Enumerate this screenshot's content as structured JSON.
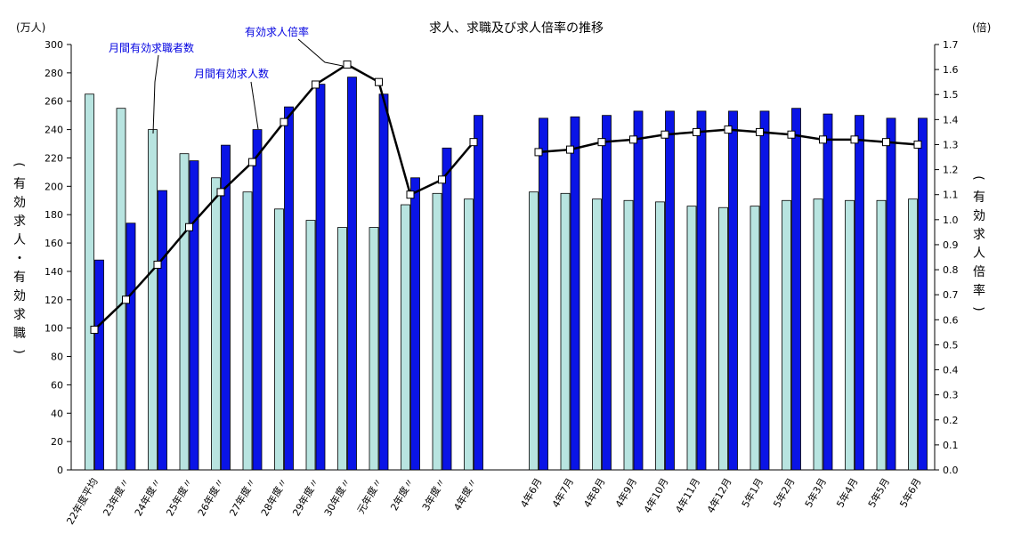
{
  "chart_data": {
    "type": "bar",
    "title": "求人、求職及び求人倍率の推移",
    "y_left_unit": "(万人)",
    "y_right_unit": "(倍)",
    "y_left_label": "(有効求人・有効求職)",
    "y_right_label": "(有効求人倍率)",
    "y_left_range": [
      0,
      300
    ],
    "y_left_step": 20,
    "y_right_range": [
      0,
      1.7
    ],
    "y_right_step": 0.1,
    "grid": false,
    "categories": [
      "22年度平均",
      "23年度〃",
      "24年度〃",
      "25年度〃",
      "26年度〃",
      "27年度〃",
      "28年度〃",
      "29年度〃",
      "30年度〃",
      "元年度〃",
      "2年度〃",
      "3年度〃",
      "4年度〃",
      "4年6月",
      "4年7月",
      "4年8月",
      "4年9月",
      "4年10月",
      "4年11月",
      "4年12月",
      "5年1月",
      "5年2月",
      "5年3月",
      "5年4月",
      "5年5月",
      "5年6月"
    ],
    "series": [
      {
        "name": "月間有効求職者数",
        "type": "bar",
        "axis": "left",
        "color": "#b8e4e0",
        "values": [
          265,
          255,
          240,
          223,
          206,
          196,
          184,
          176,
          171,
          171,
          187,
          195,
          191,
          196,
          195,
          191,
          190,
          189,
          186,
          185,
          186,
          190,
          191,
          190,
          190,
          191
        ]
      },
      {
        "name": "月間有効求人数",
        "type": "bar",
        "axis": "left",
        "color": "#0a14e6",
        "values": [
          148,
          174,
          197,
          218,
          229,
          240,
          256,
          272,
          277,
          265,
          206,
          227,
          250,
          248,
          249,
          250,
          253,
          253,
          253,
          253,
          253,
          255,
          251,
          250,
          248,
          248
        ]
      },
      {
        "name": "有効求人倍率",
        "type": "line",
        "axis": "right",
        "color": "#000000",
        "values": [
          0.56,
          0.68,
          0.82,
          0.97,
          1.11,
          1.23,
          1.39,
          1.54,
          1.62,
          1.55,
          1.1,
          1.16,
          1.31,
          1.27,
          1.28,
          1.31,
          1.32,
          1.34,
          1.35,
          1.36,
          1.35,
          1.34,
          1.32,
          1.32,
          1.31,
          1.3
        ]
      }
    ]
  }
}
